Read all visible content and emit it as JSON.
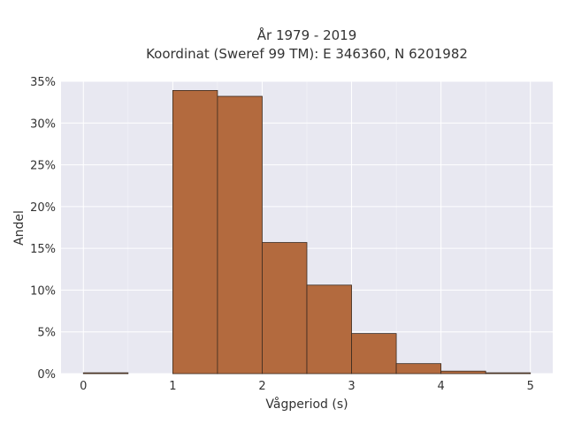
{
  "chart_data": {
    "type": "bar",
    "title_lines": [
      "År 1979 - 2019",
      "Koordinat (Sweref 99 TM): E 346360, N 6201982"
    ],
    "xlabel": "Vågperiod (s)",
    "ylabel": "Andel",
    "xlim": [
      -0.25,
      5.25
    ],
    "ylim": [
      0,
      35
    ],
    "x_ticks": [
      0,
      1,
      2,
      3,
      4,
      5
    ],
    "y_ticks": [
      0,
      5,
      10,
      15,
      20,
      25,
      30,
      35
    ],
    "y_tick_suffix": "%",
    "bin_width": 0.5,
    "bins": [
      {
        "x0": 0.0,
        "x1": 0.5,
        "value": 0.1
      },
      {
        "x0": 0.5,
        "x1": 1.0,
        "value": 0.0
      },
      {
        "x0": 1.0,
        "x1": 1.5,
        "value": 33.9
      },
      {
        "x0": 1.5,
        "x1": 2.0,
        "value": 33.2
      },
      {
        "x0": 2.0,
        "x1": 2.5,
        "value": 15.7
      },
      {
        "x0": 2.5,
        "x1": 3.0,
        "value": 10.6
      },
      {
        "x0": 3.0,
        "x1": 3.5,
        "value": 4.8
      },
      {
        "x0": 3.5,
        "x1": 4.0,
        "value": 1.2
      },
      {
        "x0": 4.0,
        "x1": 4.5,
        "value": 0.3
      },
      {
        "x0": 4.5,
        "x1": 5.0,
        "value": 0.1
      }
    ],
    "grid": true,
    "colors": {
      "bar_fill": "#b36a3e",
      "bar_edge": "#3a2a20",
      "plot_bg": "#e8e8f1",
      "grid": "#ffffff"
    }
  }
}
